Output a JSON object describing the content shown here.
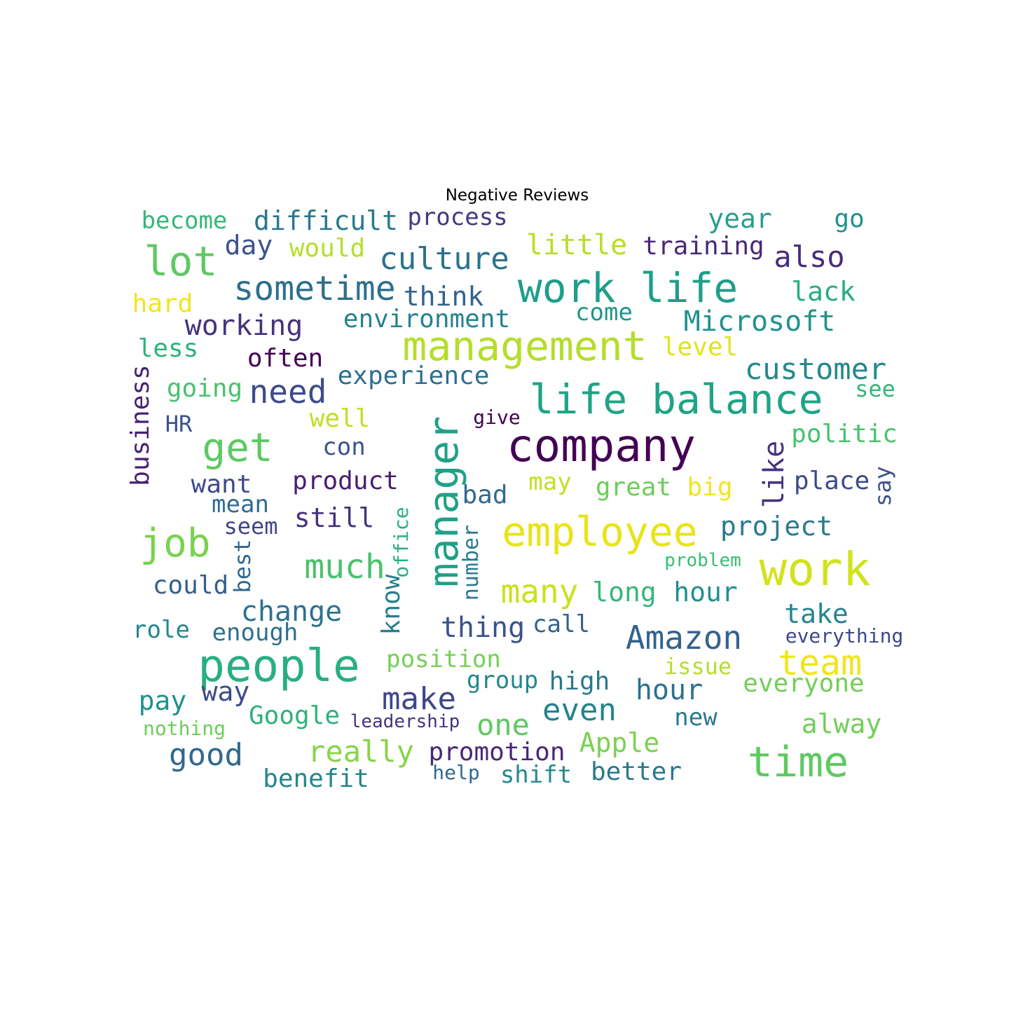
{
  "title": "Negative Reviews",
  "words": [
    {
      "text": "become",
      "color": "#35b779"
    },
    {
      "text": "difficult",
      "color": "#2a788e"
    },
    {
      "text": "process",
      "color": "#443a83"
    },
    {
      "text": "year",
      "color": "#2a9d8f"
    },
    {
      "text": "go",
      "color": "#21918c"
    },
    {
      "text": "lot",
      "color": "#5ec962"
    },
    {
      "text": "day",
      "color": "#3b528b"
    },
    {
      "text": "would",
      "color": "#b5de2b"
    },
    {
      "text": "culture",
      "color": "#2c728e"
    },
    {
      "text": "little",
      "color": "#b8de29"
    },
    {
      "text": "training",
      "color": "#482878"
    },
    {
      "text": "also",
      "color": "#472d7b"
    },
    {
      "text": "sometime",
      "color": "#2d708e"
    },
    {
      "text": "think",
      "color": "#33638d"
    },
    {
      "text": "work life",
      "color": "#1f9e89"
    },
    {
      "text": "lack",
      "color": "#27ad81"
    },
    {
      "text": "hard",
      "color": "#f1e51d"
    },
    {
      "text": "environment",
      "color": "#26828e"
    },
    {
      "text": "come",
      "color": "#1f968b"
    },
    {
      "text": "Microsoft",
      "color": "#21918c"
    },
    {
      "text": "working",
      "color": "#46337e"
    },
    {
      "text": "management",
      "color": "#b5de2b"
    },
    {
      "text": "less",
      "color": "#2eb37c"
    },
    {
      "text": "often",
      "color": "#440154"
    },
    {
      "text": "level",
      "color": "#e2e418"
    },
    {
      "text": "customer",
      "color": "#23898e"
    },
    {
      "text": "business",
      "color": "#482173"
    },
    {
      "text": "experience",
      "color": "#2e6f8e"
    },
    {
      "text": "going",
      "color": "#4ac16d"
    },
    {
      "text": "need",
      "color": "#3e4a89"
    },
    {
      "text": "manager",
      "color": "#1fa187"
    },
    {
      "text": "life balance",
      "color": "#20a386"
    },
    {
      "text": "see",
      "color": "#35b779"
    },
    {
      "text": "well",
      "color": "#c0df25"
    },
    {
      "text": "give",
      "color": "#440154"
    },
    {
      "text": "HR",
      "color": "#3a538b"
    },
    {
      "text": "get",
      "color": "#5ec962"
    },
    {
      "text": "company",
      "color": "#440154"
    },
    {
      "text": "politic",
      "color": "#4ac16d"
    },
    {
      "text": "con",
      "color": "#3b528b"
    },
    {
      "text": "like",
      "color": "#46337e"
    },
    {
      "text": "want",
      "color": "#3e4a89"
    },
    {
      "text": "product",
      "color": "#481f70"
    },
    {
      "text": "may",
      "color": "#c2df23"
    },
    {
      "text": "great",
      "color": "#6ccd5a"
    },
    {
      "text": "big",
      "color": "#f1e51d"
    },
    {
      "text": "place",
      "color": "#3e4989"
    },
    {
      "text": "say",
      "color": "#3b528b"
    },
    {
      "text": "mean",
      "color": "#2f6c8e"
    },
    {
      "text": "bad",
      "color": "#31688e"
    },
    {
      "text": "still",
      "color": "#46327e"
    },
    {
      "text": "job",
      "color": "#7ad151"
    },
    {
      "text": "seem",
      "color": "#414487"
    },
    {
      "text": "office",
      "color": "#29af7f"
    },
    {
      "text": "employee",
      "color": "#e8e419"
    },
    {
      "text": "project",
      "color": "#297b8e"
    },
    {
      "text": "number",
      "color": "#2a788e"
    },
    {
      "text": "best",
      "color": "#31688e"
    },
    {
      "text": "much",
      "color": "#4ac16d"
    },
    {
      "text": "work",
      "color": "#d2e21b"
    },
    {
      "text": "problem",
      "color": "#3bbb75"
    },
    {
      "text": "could",
      "color": "#355f8d"
    },
    {
      "text": "many",
      "color": "#cae11f"
    },
    {
      "text": "long",
      "color": "#35b779"
    },
    {
      "text": "hour",
      "color": "#22908d"
    },
    {
      "text": "know",
      "color": "#277f8e"
    },
    {
      "text": "change",
      "color": "#2c728e"
    },
    {
      "text": "take",
      "color": "#25858e"
    },
    {
      "text": "role",
      "color": "#23898e"
    },
    {
      "text": "enough",
      "color": "#2d708e"
    },
    {
      "text": "thing",
      "color": "#3b528b"
    },
    {
      "text": "call",
      "color": "#34618d"
    },
    {
      "text": "Amazon",
      "color": "#33638d"
    },
    {
      "text": "everything",
      "color": "#3e4989"
    },
    {
      "text": "people",
      "color": "#29af7f"
    },
    {
      "text": "position",
      "color": "#75d054"
    },
    {
      "text": "issue",
      "color": "#b5de2b"
    },
    {
      "text": "team",
      "color": "#f1e51d"
    },
    {
      "text": "group",
      "color": "#23888e"
    },
    {
      "text": "high",
      "color": "#2a788e"
    },
    {
      "text": "everyone",
      "color": "#70cf57"
    },
    {
      "text": "way",
      "color": "#3e4a89"
    },
    {
      "text": "pay",
      "color": "#21918c"
    },
    {
      "text": "make",
      "color": "#3f4788"
    },
    {
      "text": "hour",
      "color": "#2c728e"
    },
    {
      "text": "Google",
      "color": "#2db27d"
    },
    {
      "text": "even",
      "color": "#25838e"
    },
    {
      "text": "one",
      "color": "#5ec962"
    },
    {
      "text": "new",
      "color": "#2a788e"
    },
    {
      "text": "leadership",
      "color": "#46337e"
    },
    {
      "text": "alway",
      "color": "#70cf57"
    },
    {
      "text": "nothing",
      "color": "#6ccd5a"
    },
    {
      "text": "Apple",
      "color": "#7ad151"
    },
    {
      "text": "good",
      "color": "#31688e"
    },
    {
      "text": "really",
      "color": "#86d549"
    },
    {
      "text": "promotion",
      "color": "#482878"
    },
    {
      "text": "time",
      "color": "#5ec962"
    },
    {
      "text": "help",
      "color": "#31688e"
    },
    {
      "text": "shift",
      "color": "#23898e"
    },
    {
      "text": "better",
      "color": "#2a788e"
    },
    {
      "text": "benefit",
      "color": "#25858e"
    }
  ]
}
